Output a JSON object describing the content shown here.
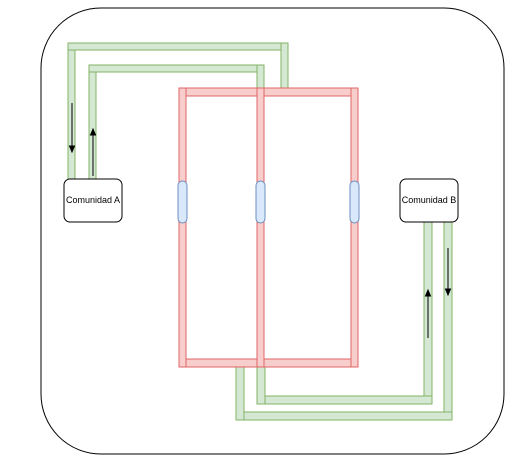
{
  "diagram": {
    "colors": {
      "frame_stroke": "#000000",
      "green_fill": "#d5e8d4",
      "green_stroke": "#82b366",
      "red_fill": "#f8cecc",
      "red_stroke": "#e06666",
      "blue_fill": "#dae8fc",
      "blue_stroke": "#6c8ebf",
      "node_fill": "#ffffff",
      "node_stroke": "#000000"
    },
    "nodes": {
      "community_a": {
        "label": "Comunidad A"
      },
      "community_b": {
        "label": "Comunidad B"
      }
    }
  }
}
